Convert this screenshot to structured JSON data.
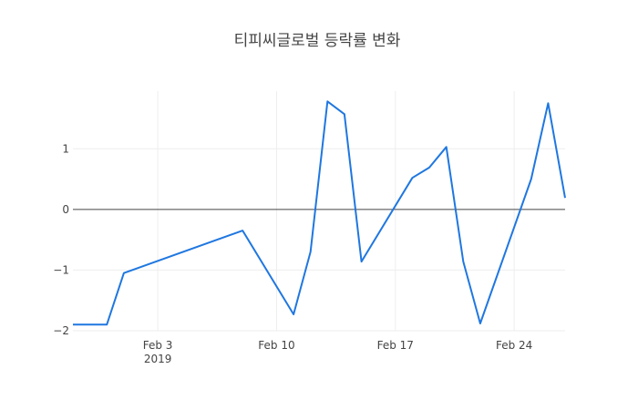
{
  "chart_data": {
    "type": "line",
    "title": "티피씨글로벌 등락률 변화",
    "xlabel": "",
    "ylabel": "",
    "x_axis_type": "date",
    "xlim": [
      "2019-01-29",
      "2019-02-27"
    ],
    "ylim": [
      -2.0,
      1.95
    ],
    "x_ticks": [
      {
        "date": "2019-02-03",
        "label": "Feb 3",
        "sublabel": "2019"
      },
      {
        "date": "2019-02-10",
        "label": "Feb 10",
        "sublabel": ""
      },
      {
        "date": "2019-02-17",
        "label": "Feb 17",
        "sublabel": ""
      },
      {
        "date": "2019-02-24",
        "label": "Feb 24",
        "sublabel": ""
      }
    ],
    "y_ticks": [
      {
        "value": 1,
        "label": "1"
      },
      {
        "value": 0,
        "label": "0"
      },
      {
        "value": -1,
        "label": "−1"
      },
      {
        "value": -2,
        "label": "−2"
      }
    ],
    "grid": true,
    "zero_line": true,
    "line_color": "#1f77e0",
    "series": [
      {
        "x": [
          "2019-01-29",
          "2019-01-31",
          "2019-02-01",
          "2019-02-08",
          "2019-02-11",
          "2019-02-12",
          "2019-02-13",
          "2019-02-14",
          "2019-02-15",
          "2019-02-18",
          "2019-02-19",
          "2019-02-20",
          "2019-02-21",
          "2019-02-22",
          "2019-02-25",
          "2019-02-26",
          "2019-02-27"
        ],
        "values": [
          -1.9,
          -1.9,
          -1.05,
          -0.35,
          -1.73,
          -0.7,
          1.78,
          1.57,
          -0.86,
          0.52,
          0.69,
          1.03,
          -0.86,
          -1.88,
          0.5,
          1.75,
          0.19
        ]
      }
    ]
  }
}
